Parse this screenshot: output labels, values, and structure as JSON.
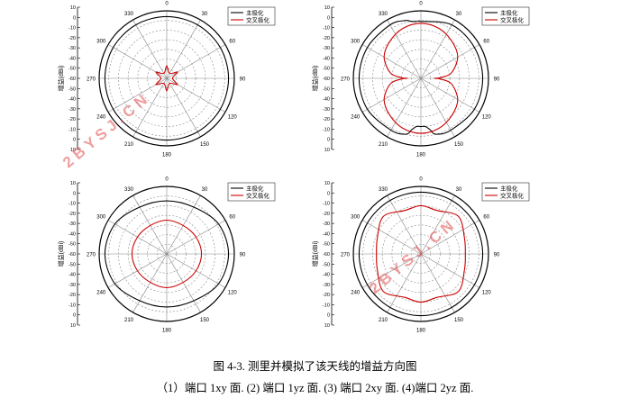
{
  "figure": {
    "caption_title": "图 4-3. 测里并模拟了该天线的增益方向图",
    "caption_sub": "（1）端口 1xy 面. (2) 端口 1yz 面. (3) 端口 2xy 面. (4)端口 2yz 面."
  },
  "watermark": "2 B Y S J . C N",
  "colors": {
    "co_pol": "#000000",
    "cross_pol": "#cc0000",
    "grid": "#888888"
  },
  "chart_data": [
    {
      "type": "polar-line",
      "ylabel": "增益(dBi)",
      "radial_ticks": [
        "10",
        "0",
        "-10",
        "-20",
        "-30",
        "-40",
        "-50",
        "-60",
        "-50",
        "-40",
        "-30",
        "-20",
        "-10",
        "0",
        "10"
      ],
      "rlim": [
        -60,
        10
      ],
      "angle_ticks": [
        "0",
        "30",
        "60",
        "90",
        "120",
        "150",
        "180",
        "210",
        "240",
        "270",
        "300",
        "330"
      ],
      "grid": true,
      "legend_position": "top-right",
      "series": [
        {
          "name": "主极化",
          "angles": [
            0,
            30,
            60,
            90,
            120,
            150,
            180,
            210,
            240,
            270,
            300,
            330
          ],
          "values": [
            4,
            4,
            4,
            4,
            4,
            4,
            4,
            4,
            4,
            4,
            4,
            4
          ]
        },
        {
          "name": "交叉极化",
          "angles": [
            0,
            30,
            60,
            90,
            120,
            150,
            180,
            210,
            240,
            270,
            300,
            330
          ],
          "values": [
            -47,
            -54,
            -47,
            -54,
            -47,
            -54,
            -47,
            -54,
            -47,
            -54,
            -47,
            -54
          ]
        }
      ]
    },
    {
      "type": "polar-line",
      "ylabel": "增益(dBi)",
      "radial_ticks": [
        "10",
        "0",
        "-10",
        "-20",
        "-30",
        "-40",
        "-50",
        "-60",
        "-50",
        "-40",
        "-30",
        "-20",
        "-10",
        "0",
        "10"
      ],
      "rlim": [
        -60,
        10
      ],
      "angle_ticks": [
        "0",
        "30",
        "60",
        "90",
        "120",
        "150",
        "180",
        "210",
        "240",
        "270",
        "300",
        "330"
      ],
      "grid": true,
      "legend_position": "top-right",
      "series": [
        {
          "name": "主极化",
          "angles": [
            0,
            30,
            60,
            90,
            120,
            150,
            165,
            170,
            175,
            180,
            185,
            190,
            195,
            210,
            240,
            270,
            300,
            330,
            345,
            350,
            355
          ],
          "values": [
            -1,
            4,
            4,
            4,
            4,
            2,
            0,
            -6,
            -10,
            -10,
            -10,
            -6,
            0,
            2,
            4,
            4,
            4,
            4,
            2,
            0,
            -1
          ]
        },
        {
          "name": "交叉极化",
          "angles": [
            0,
            20,
            40,
            60,
            80,
            88,
            90,
            92,
            100,
            120,
            140,
            160,
            180,
            200,
            220,
            240,
            260,
            268,
            270,
            272,
            280,
            300,
            320,
            340
          ],
          "values": [
            -3,
            -5,
            -10,
            -16,
            -28,
            -40,
            -46,
            -40,
            -28,
            -16,
            -10,
            -5,
            -3,
            -5,
            -10,
            -16,
            -28,
            -40,
            -46,
            -40,
            -28,
            -16,
            -10,
            -5
          ]
        }
      ]
    },
    {
      "type": "polar-line",
      "ylabel": "增益(dBi)",
      "radial_ticks": [
        "10",
        "0",
        "-10",
        "-20",
        "-30",
        "-40",
        "-50",
        "-60",
        "-50",
        "-40",
        "-30",
        "-20",
        "-10",
        "0",
        "10"
      ],
      "rlim": [
        -60,
        10
      ],
      "angle_ticks": [
        "0",
        "30",
        "60",
        "90",
        "120",
        "150",
        "180",
        "210",
        "240",
        "270",
        "300",
        "330"
      ],
      "grid": true,
      "legend_position": "top-right",
      "series": [
        {
          "name": "主极化",
          "angles": [
            0,
            30,
            60,
            90,
            120,
            150,
            180,
            210,
            240,
            270,
            300,
            330
          ],
          "values": [
            -5,
            -4,
            2,
            4,
            2,
            -4,
            -5,
            -4,
            2,
            4,
            2,
            -4
          ]
        },
        {
          "name": "交叉极化",
          "angles": [
            0,
            30,
            60,
            90,
            120,
            150,
            180,
            210,
            240,
            270,
            300,
            330
          ],
          "values": [
            -25,
            -26,
            -25,
            -24,
            -25,
            -26,
            -25,
            -26,
            -25,
            -24,
            -25,
            -26
          ]
        }
      ]
    },
    {
      "type": "polar-line",
      "ylabel": "增益(dBi)",
      "radial_ticks": [
        "10",
        "0",
        "-10",
        "-20",
        "-30",
        "-40",
        "-50",
        "-60",
        "-50",
        "-40",
        "-30",
        "-20",
        "-10",
        "0",
        "10"
      ],
      "rlim": [
        -60,
        10
      ],
      "angle_ticks": [
        "0",
        "30",
        "60",
        "90",
        "120",
        "150",
        "180",
        "210",
        "240",
        "270",
        "300",
        "330"
      ],
      "grid": true,
      "legend_position": "top-right",
      "series": [
        {
          "name": "主极化",
          "angles": [
            0,
            30,
            60,
            90,
            120,
            150,
            180,
            210,
            240,
            270,
            300,
            330
          ],
          "values": [
            4,
            4,
            4,
            4,
            4,
            4,
            4,
            4,
            4,
            4,
            4,
            4
          ]
        },
        {
          "name": "交叉极化",
          "angles": [
            0,
            20,
            45,
            70,
            90,
            110,
            135,
            160,
            180,
            200,
            225,
            250,
            270,
            290,
            315,
            340
          ],
          "values": [
            -10,
            -12,
            -5,
            -12,
            -14,
            -12,
            -5,
            -12,
            -10,
            -12,
            -5,
            -12,
            -14,
            -12,
            -5,
            -12
          ]
        }
      ]
    }
  ]
}
